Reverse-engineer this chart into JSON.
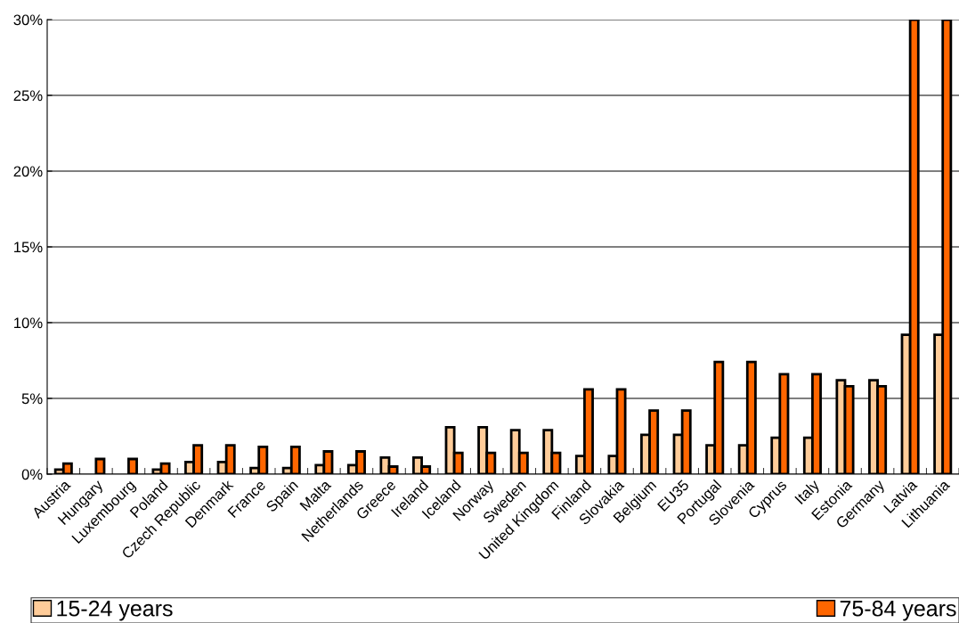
{
  "chart_data": {
    "type": "bar",
    "categories": [
      "Austria",
      "Hungary",
      "Luxembourg",
      "Poland",
      "Czech Republic",
      "Denmark",
      "France",
      "Spain",
      "Malta",
      "Netherlands",
      "Greece",
      "Ireland",
      "Iceland",
      "Norway",
      "Sweden",
      "United Kingdom",
      "Finland",
      "Slovakia",
      "Belgium",
      "EU35",
      "Portugal",
      "Slovenia",
      "Cyprus",
      "Italy",
      "Estonia",
      "Germany",
      "Latvia",
      "Lithuania"
    ],
    "series": [
      {
        "name": "15-24 years",
        "color": "#ffcc99",
        "values": [
          0.3,
          null,
          null,
          0.3,
          0.8,
          0.8,
          0.4,
          0.4,
          0.6,
          0.6,
          1.1,
          1.1,
          3.1,
          3.1,
          2.9,
          2.9,
          1.2,
          1.2,
          2.6,
          2.6,
          1.9,
          1.9,
          2.4,
          2.4,
          6.2,
          6.2,
          9.2,
          9.2
        ]
      },
      {
        "name": "75-84 years",
        "color": "#ff6600",
        "values": [
          0.7,
          1.0,
          1.0,
          0.7,
          1.9,
          1.9,
          1.8,
          1.8,
          1.5,
          1.5,
          0.5,
          0.5,
          1.4,
          1.4,
          1.4,
          1.4,
          5.6,
          5.6,
          4.2,
          4.2,
          7.4,
          7.4,
          6.6,
          6.6,
          5.8,
          5.8,
          30,
          30
        ]
      }
    ],
    "ylim": [
      0,
      30
    ],
    "yticks": [
      {
        "value": 0,
        "label": "0%"
      },
      {
        "value": 5,
        "label": "5%"
      },
      {
        "value": 10,
        "label": "10%"
      },
      {
        "value": 15,
        "label": "15%"
      },
      {
        "value": 20,
        "label": "20%"
      },
      {
        "value": 25,
        "label": "25%"
      },
      {
        "value": 30,
        "label": "30%"
      }
    ],
    "grid": "y",
    "legend": "bottom"
  }
}
